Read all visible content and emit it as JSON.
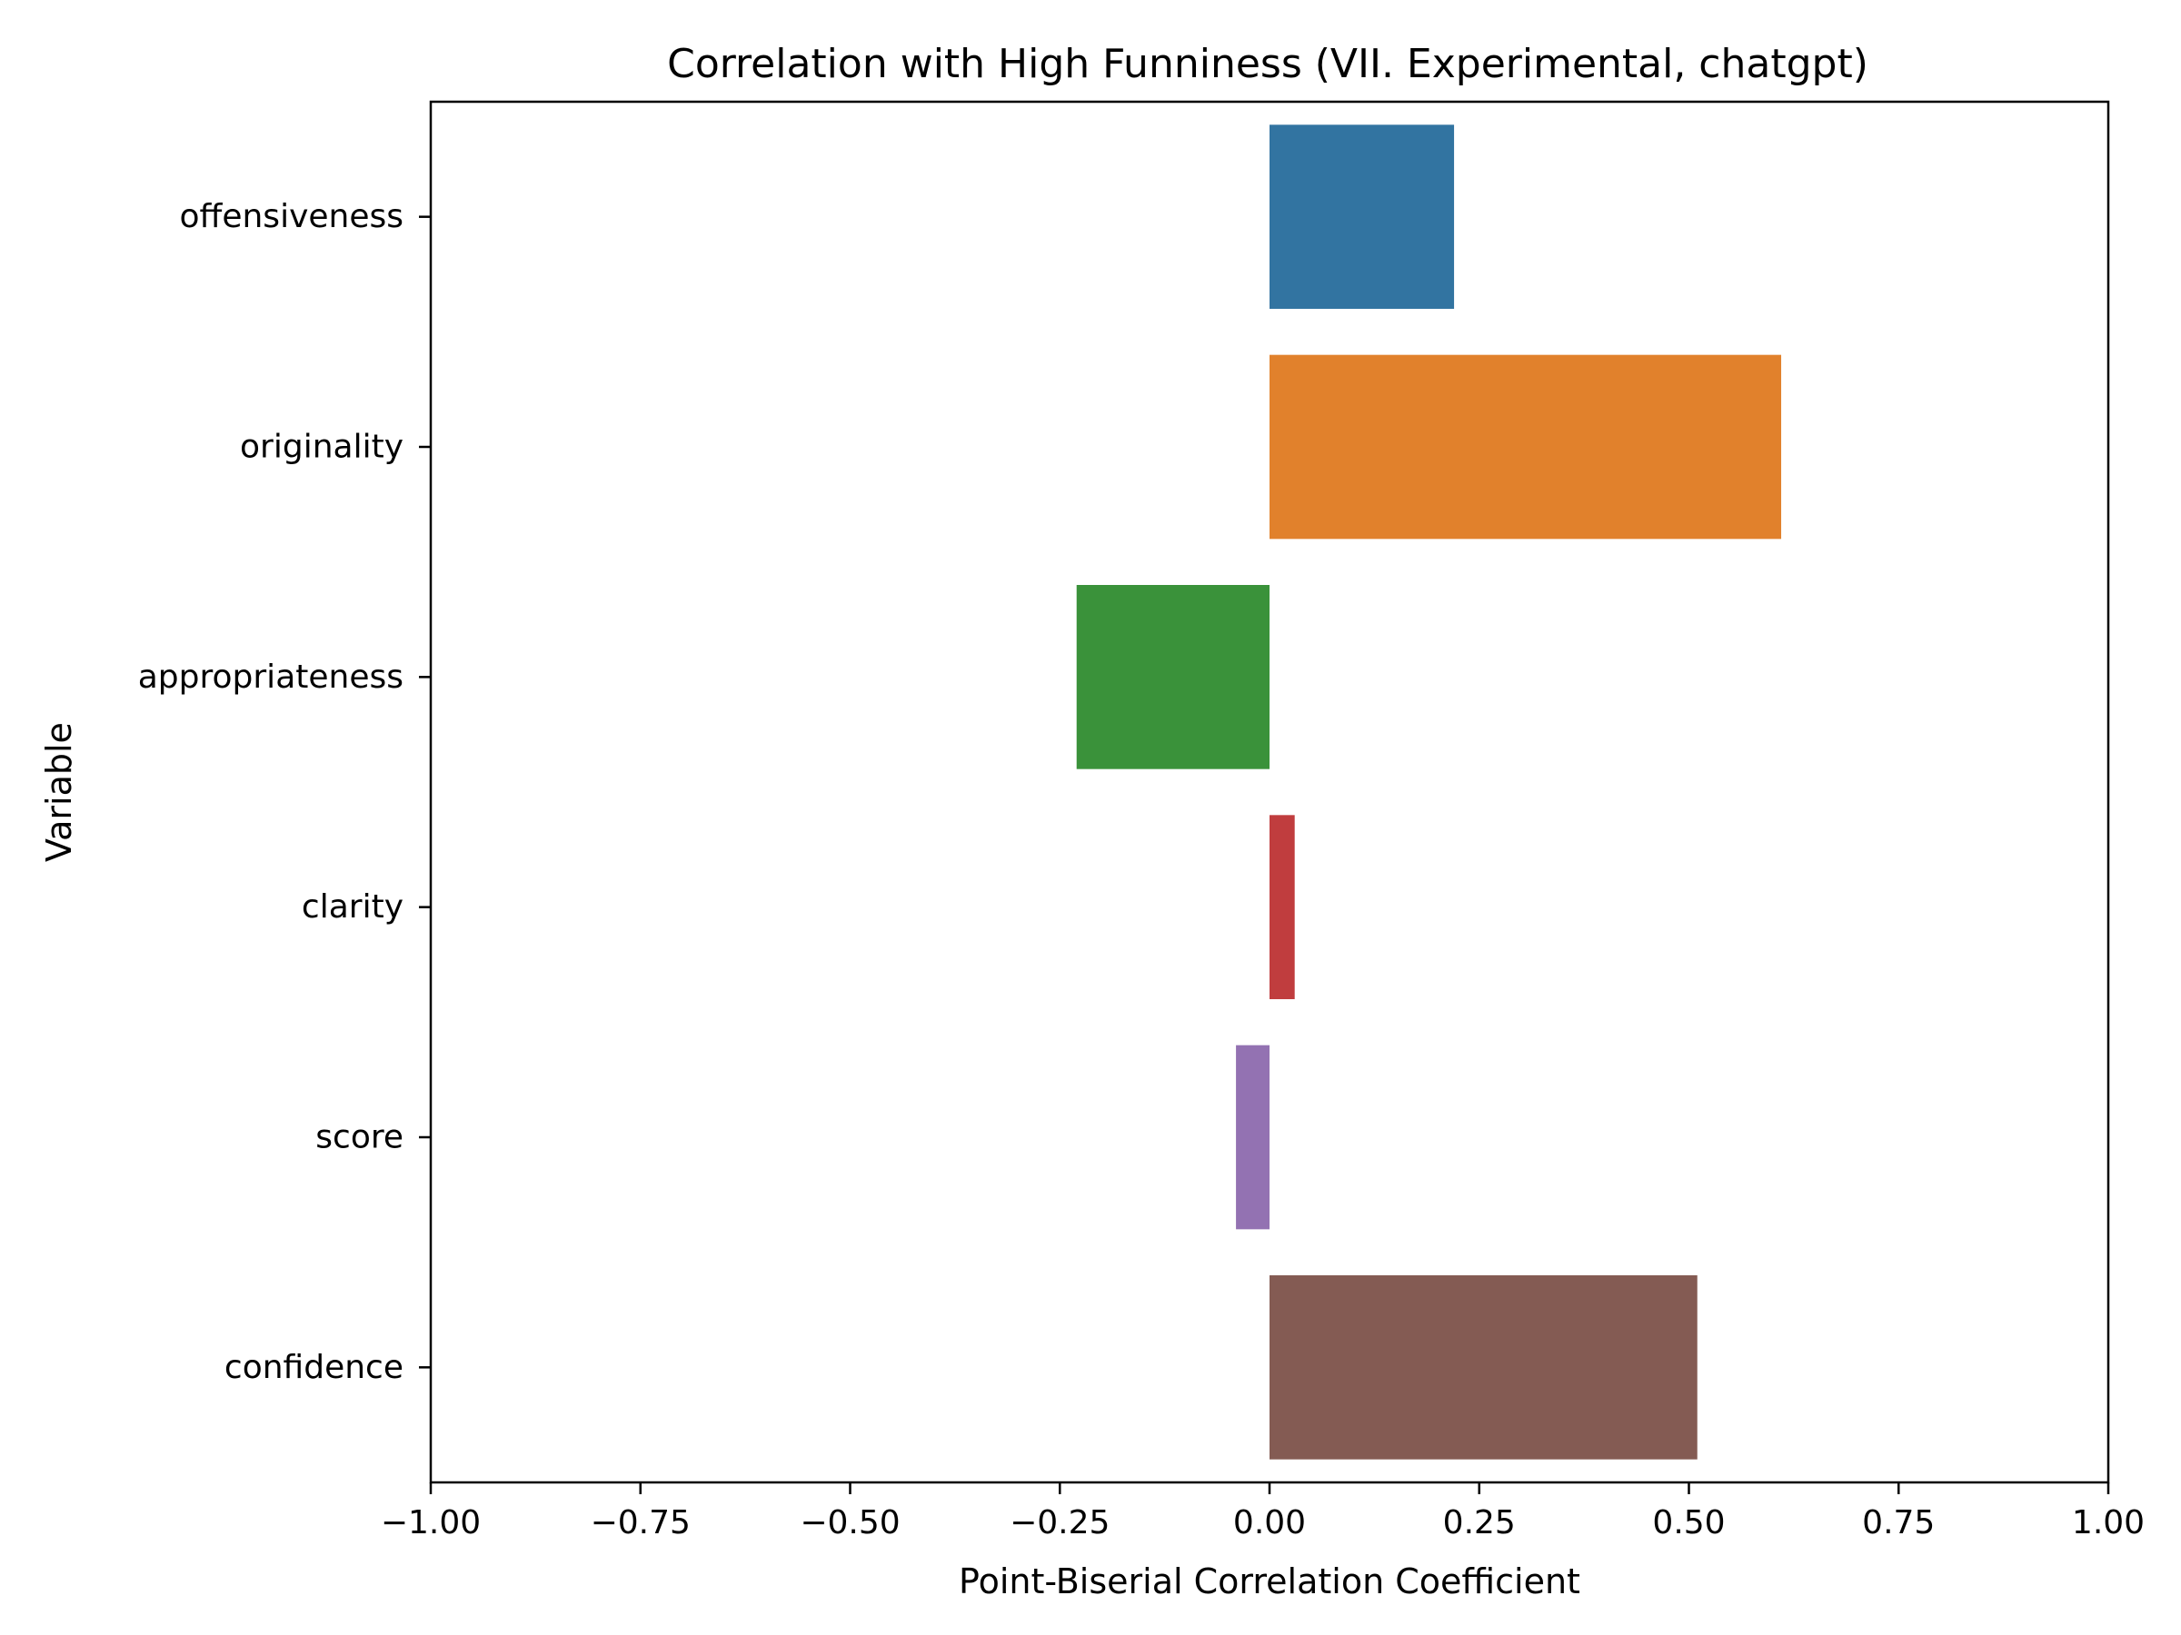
{
  "chart_data": {
    "type": "bar",
    "orientation": "horizontal",
    "title": "Correlation with High Funniness (VII. Experimental, chatgpt)",
    "xlabel": "Point-Biserial Correlation Coefficient",
    "ylabel": "Variable",
    "xlim": [
      -1.0,
      1.0
    ],
    "x_ticks": [
      -1.0,
      -0.75,
      -0.5,
      -0.25,
      0.0,
      0.25,
      0.5,
      0.75,
      1.0
    ],
    "x_tick_labels": [
      "−1.00",
      "−0.75",
      "−0.50",
      "−0.25",
      "0.00",
      "0.25",
      "0.50",
      "0.75",
      "1.00"
    ],
    "categories": [
      "offensiveness",
      "originality",
      "appropriateness",
      "clarity",
      "score",
      "confidence"
    ],
    "values": [
      0.22,
      0.61,
      -0.23,
      0.03,
      -0.04,
      0.51
    ],
    "colors": [
      "#3274a1",
      "#e1812c",
      "#3a923a",
      "#c03d3e",
      "#9372b2",
      "#845b53"
    ],
    "grid": false,
    "legend": "none"
  }
}
